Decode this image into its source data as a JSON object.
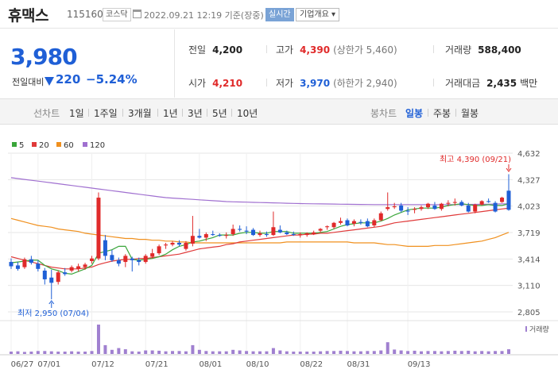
{
  "header": {
    "stock_name": "휴맥스",
    "stock_code": "115160",
    "market": "코스닥",
    "datetime": "2022.09.21 12:19 기준(장중)",
    "realtime_label": "실시간",
    "company_info_label": "기업개요 ▾"
  },
  "price": {
    "current": "3,980",
    "change_label": "전일대비",
    "change_amount": "220",
    "change_pct": "−5.24%"
  },
  "stats": {
    "prev_close": {
      "label": "전일",
      "value": "4,200"
    },
    "high": {
      "label": "고가",
      "value": "4,390",
      "sub": "(상한가 5,460)"
    },
    "volume": {
      "label": "거래량",
      "value": "588,400"
    },
    "open": {
      "label": "시가",
      "value": "4,210"
    },
    "low": {
      "label": "저가",
      "value": "3,970",
      "sub": "(하한가 2,940)"
    },
    "amount": {
      "label": "거래대금",
      "value": "2,435",
      "unit": "백만"
    }
  },
  "toolbar": {
    "line_chart_label": "선차트",
    "periods": [
      "1일",
      "1주일",
      "3개월",
      "1년",
      "3년",
      "5년",
      "10년"
    ],
    "candle_chart_label": "봉차트",
    "candle_types": [
      "일봉",
      "주봉",
      "월봉"
    ],
    "active_candle": "일봉"
  },
  "colors": {
    "up": "#e02a2a",
    "down": "#1f5fd6",
    "ma5": "#3aa63a",
    "ma20": "#e03a3a",
    "ma60": "#f0901e",
    "ma120": "#a070d0",
    "volume": "#a080d0"
  },
  "chart_data": {
    "type": "candlestick",
    "legend": [
      "5",
      "20",
      "60",
      "120"
    ],
    "y_ticks": [
      "4,632",
      "4,327",
      "4,023",
      "3,719",
      "3,414",
      "3,110",
      "2,805"
    ],
    "y_tick_values": [
      4632,
      4327,
      4023,
      3719,
      3414,
      3110,
      2805
    ],
    "ylim": [
      2805,
      4632
    ],
    "x_ticks": [
      "06/27",
      "07/01",
      "07/12",
      "07/21",
      "08/01",
      "08/10",
      "08/22",
      "08/31",
      "09/13"
    ],
    "max_annotation": "최고 4,390 (09/21)",
    "min_annotation": "최저 2,950 (07/04)",
    "volume_label": "거래량",
    "candles": [
      [
        3380,
        3420,
        3300,
        3330
      ],
      [
        3340,
        3380,
        3280,
        3300
      ],
      [
        3320,
        3430,
        3300,
        3410
      ],
      [
        3410,
        3450,
        3350,
        3370
      ],
      [
        3360,
        3400,
        3270,
        3300
      ],
      [
        3280,
        3310,
        3120,
        3180
      ],
      [
        3200,
        3290,
        2950,
        3140
      ],
      [
        3150,
        3280,
        3120,
        3260
      ],
      [
        3260,
        3310,
        3220,
        3240
      ],
      [
        3280,
        3340,
        3260,
        3320
      ],
      [
        3300,
        3360,
        3270,
        3330
      ],
      [
        3320,
        3370,
        3290,
        3350
      ],
      [
        3390,
        3450,
        3360,
        3420
      ],
      [
        3420,
        4180,
        3400,
        4120
      ],
      [
        3630,
        3690,
        3400,
        3450
      ],
      [
        3460,
        3520,
        3380,
        3400
      ],
      [
        3400,
        3430,
        3330,
        3360
      ],
      [
        3380,
        3470,
        3320,
        3450
      ],
      [
        3420,
        3440,
        3270,
        3400
      ],
      [
        3400,
        3430,
        3340,
        3380
      ],
      [
        3380,
        3470,
        3360,
        3450
      ],
      [
        3440,
        3530,
        3420,
        3480
      ],
      [
        3480,
        3580,
        3460,
        3560
      ],
      [
        3570,
        3600,
        3530,
        3580
      ],
      [
        3580,
        3620,
        3560,
        3600
      ],
      [
        3600,
        3630,
        3560,
        3580
      ],
      [
        3530,
        3620,
        3510,
        3600
      ],
      [
        3590,
        3910,
        3560,
        3680
      ],
      [
        3680,
        3760,
        3650,
        3660
      ],
      [
        3660,
        3720,
        3620,
        3700
      ],
      [
        3700,
        3740,
        3680,
        3690
      ],
      [
        3690,
        3710,
        3670,
        3680
      ],
      [
        3680,
        3720,
        3650,
        3690
      ],
      [
        3700,
        3810,
        3680,
        3760
      ],
      [
        3760,
        3800,
        3730,
        3750
      ],
      [
        3740,
        3790,
        3700,
        3730
      ],
      [
        3750,
        3770,
        3680,
        3690
      ],
      [
        3690,
        3740,
        3670,
        3710
      ],
      [
        3700,
        3730,
        3670,
        3690
      ],
      [
        3690,
        3960,
        3680,
        3780
      ],
      [
        3750,
        3800,
        3710,
        3720
      ],
      [
        3720,
        3740,
        3690,
        3700
      ],
      [
        3700,
        3730,
        3680,
        3690
      ],
      [
        3690,
        3720,
        3660,
        3700
      ],
      [
        3690,
        3720,
        3670,
        3710
      ],
      [
        3700,
        3740,
        3690,
        3720
      ],
      [
        3740,
        3770,
        3720,
        3760
      ],
      [
        3780,
        3800,
        3750,
        3790
      ],
      [
        3780,
        3840,
        3760,
        3830
      ],
      [
        3830,
        3890,
        3810,
        3850
      ],
      [
        3860,
        3880,
        3790,
        3800
      ],
      [
        3820,
        3870,
        3790,
        3850
      ],
      [
        3840,
        3870,
        3810,
        3830
      ],
      [
        3850,
        3880,
        3780,
        3790
      ],
      [
        3800,
        3880,
        3780,
        3860
      ],
      [
        3860,
        3960,
        3850,
        3940
      ],
      [
        3990,
        4180,
        3970,
        4010
      ],
      [
        4010,
        4060,
        3990,
        4020
      ],
      [
        4030,
        4060,
        3950,
        3970
      ],
      [
        3970,
        4010,
        3920,
        3960
      ],
      [
        3980,
        4010,
        3940,
        3990
      ],
      [
        3990,
        4030,
        3970,
        4010
      ],
      [
        4010,
        4060,
        3990,
        4050
      ],
      [
        4030,
        4070,
        3980,
        3990
      ],
      [
        3990,
        4060,
        3970,
        4050
      ],
      [
        4050,
        4090,
        4020,
        4060
      ],
      [
        4060,
        4110,
        4030,
        4070
      ],
      [
        4070,
        4090,
        4020,
        4030
      ],
      [
        4030,
        4060,
        3950,
        3960
      ],
      [
        3960,
        4050,
        3940,
        4040
      ],
      [
        4040,
        4090,
        4030,
        4080
      ],
      [
        4080,
        4110,
        4060,
        4070
      ],
      [
        4060,
        4080,
        3950,
        3960
      ],
      [
        4070,
        4130,
        4060,
        4120
      ],
      [
        4200,
        4390,
        3970,
        3980
      ]
    ],
    "volume_values": [
      8,
      9,
      7,
      8,
      10,
      10,
      9,
      8,
      8,
      9,
      8,
      8,
      10,
      100,
      30,
      14,
      20,
      16,
      9,
      8,
      12,
      12,
      11,
      9,
      10,
      10,
      9,
      30,
      14,
      10,
      9,
      9,
      9,
      14,
      12,
      10,
      9,
      9,
      9,
      20,
      12,
      9,
      8,
      8,
      8,
      8,
      9,
      10,
      10,
      11,
      10,
      9,
      9,
      10,
      10,
      12,
      40,
      15,
      12,
      10,
      11,
      9,
      10,
      10,
      9,
      10,
      11,
      10,
      11,
      9,
      10,
      9,
      10,
      10,
      16
    ],
    "ma5": [
      3370,
      3380,
      3390,
      3400,
      3400,
      3340,
      3300,
      3280,
      3250,
      3240,
      3270,
      3300,
      3340,
      3480,
      3500,
      3520,
      3560,
      3560,
      3410,
      3400,
      3410,
      3420,
      3440,
      3470,
      3520,
      3560,
      3580,
      3610,
      3620,
      3640,
      3660,
      3690,
      3690,
      3690,
      3710,
      3720,
      3720,
      3710,
      3710,
      3730,
      3730,
      3730,
      3710,
      3710,
      3710,
      3710,
      3720,
      3730,
      3760,
      3790,
      3810,
      3820,
      3830,
      3830,
      3830,
      3850,
      3880,
      3920,
      3950,
      3980,
      3990,
      4000,
      4000,
      4000,
      4010,
      4030,
      4040,
      4050,
      4040,
      4030,
      4030,
      4040,
      4030,
      4030,
      4050
    ],
    "ma20": [
      3440,
      3420,
      3400,
      3380,
      3360,
      3340,
      3320,
      3310,
      3300,
      3300,
      3300,
      3310,
      3320,
      3350,
      3370,
      3390,
      3400,
      3410,
      3410,
      3420,
      3420,
      3430,
      3440,
      3450,
      3460,
      3470,
      3490,
      3510,
      3530,
      3540,
      3550,
      3560,
      3580,
      3590,
      3610,
      3620,
      3630,
      3640,
      3650,
      3660,
      3670,
      3680,
      3690,
      3690,
      3700,
      3700,
      3710,
      3710,
      3720,
      3730,
      3740,
      3750,
      3760,
      3770,
      3780,
      3790,
      3810,
      3830,
      3840,
      3850,
      3860,
      3870,
      3880,
      3890,
      3900,
      3910,
      3920,
      3930,
      3940,
      3950,
      3960,
      3970,
      3980,
      3990,
      4000
    ],
    "ma60": [
      3880,
      3860,
      3840,
      3820,
      3800,
      3790,
      3780,
      3760,
      3750,
      3740,
      3730,
      3710,
      3700,
      3690,
      3680,
      3670,
      3660,
      3650,
      3650,
      3640,
      3640,
      3630,
      3630,
      3620,
      3620,
      3610,
      3610,
      3600,
      3600,
      3600,
      3600,
      3600,
      3600,
      3600,
      3600,
      3600,
      3600,
      3600,
      3600,
      3600,
      3600,
      3610,
      3610,
      3610,
      3610,
      3610,
      3610,
      3610,
      3610,
      3610,
      3610,
      3600,
      3600,
      3600,
      3600,
      3590,
      3580,
      3580,
      3570,
      3560,
      3560,
      3560,
      3560,
      3570,
      3570,
      3570,
      3580,
      3590,
      3600,
      3610,
      3620,
      3640,
      3660,
      3690,
      3720
    ],
    "ma120": [
      4350,
      4340,
      4330,
      4320,
      4310,
      4300,
      4290,
      4280,
      4270,
      4260,
      4250,
      4240,
      4230,
      4220,
      4210,
      4200,
      4190,
      4180,
      4170,
      4160,
      4150,
      4140,
      4130,
      4120,
      4115,
      4110,
      4105,
      4100,
      4095,
      4090,
      4085,
      4080,
      4075,
      4072,
      4070,
      4068,
      4066,
      4064,
      4062,
      4060,
      4058,
      4056,
      4054,
      4052,
      4050,
      4049,
      4048,
      4047,
      4046,
      4045,
      4044,
      4043,
      4042,
      4041,
      4040,
      4040,
      4040,
      4040,
      4040,
      4040,
      4040,
      4040,
      4040,
      4040,
      4040,
      4040,
      4040,
      4041,
      4042,
      4043,
      4044,
      4045,
      4046,
      4048,
      4050
    ]
  }
}
